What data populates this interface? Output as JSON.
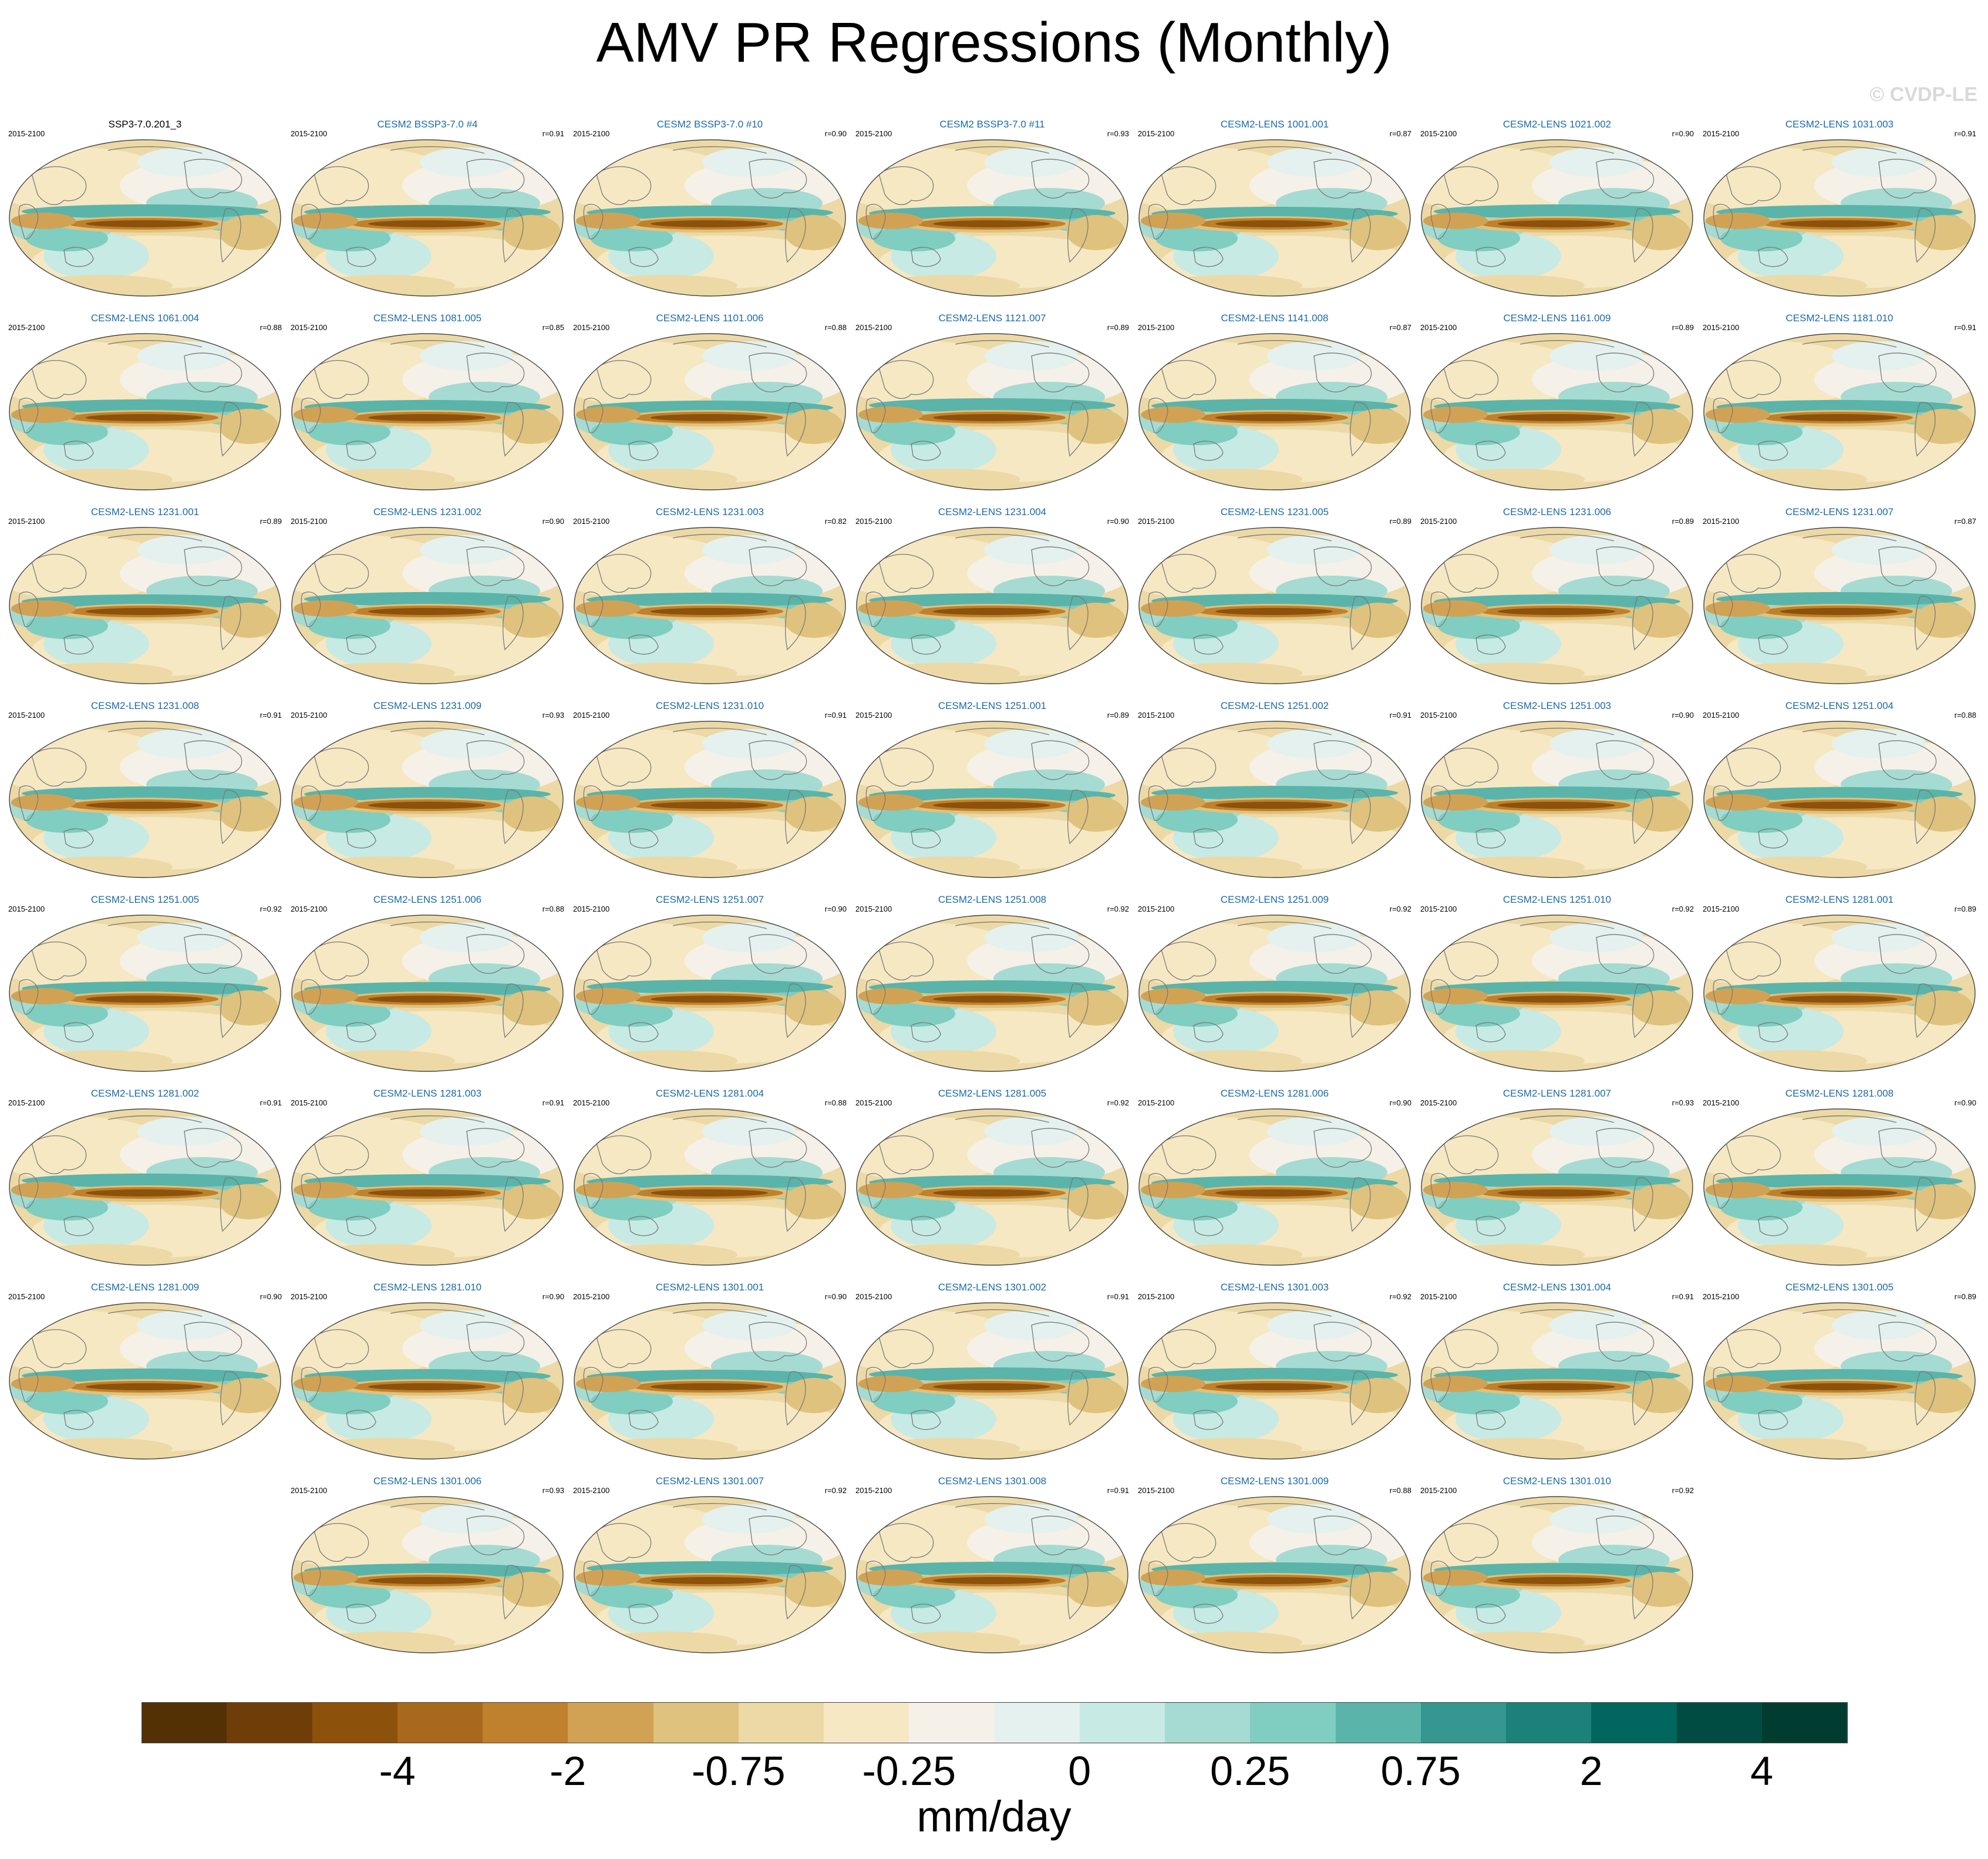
{
  "title": "AMV PR Regressions (Monthly)",
  "watermark": "© CVDP-LE",
  "chart_data": {
    "type": "map-grid",
    "title": "AMV PR Regressions (Monthly)",
    "colorbar": {
      "units": "mm/day",
      "colors": [
        "#543005",
        "#6f3e08",
        "#8c510a",
        "#a8691c",
        "#bf812d",
        "#d2a254",
        "#dfc27d",
        "#ecd9a6",
        "#f6e8c3",
        "#f5f1e8",
        "#e4f1ee",
        "#c7eae5",
        "#a5dbd2",
        "#80cdc1",
        "#5ab4a9",
        "#35978f",
        "#1c8179",
        "#01665e",
        "#014c42",
        "#003c30"
      ],
      "tick_labels": [
        "-4",
        "-2",
        "-0.75",
        "-0.25",
        "0",
        "0.25",
        "0.75",
        "2",
        "4"
      ],
      "tick_boundaries": [
        3,
        5,
        7,
        9,
        11,
        13,
        15,
        17,
        19
      ]
    },
    "panels": [
      {
        "title": "SSP3-7.0.201_3",
        "period": "2015-2100",
        "r": ""
      },
      {
        "title": "CESM2 BSSP3-7.0 #4",
        "period": "2015-2100",
        "r": "r=0.91"
      },
      {
        "title": "CESM2 BSSP3-7.0 #10",
        "period": "2015-2100",
        "r": "r=0.90"
      },
      {
        "title": "CESM2 BSSP3-7.0 #11",
        "period": "2015-2100",
        "r": "r=0.93"
      },
      {
        "title": "CESM2-LENS 1001.001",
        "period": "2015-2100",
        "r": "r=0.87"
      },
      {
        "title": "CESM2-LENS 1021.002",
        "period": "2015-2100",
        "r": "r=0.90"
      },
      {
        "title": "CESM2-LENS 1031.003",
        "period": "2015-2100",
        "r": "r=0.91"
      },
      {
        "title": "CESM2-LENS 1061.004",
        "period": "2015-2100",
        "r": "r=0.88"
      },
      {
        "title": "CESM2-LENS 1081.005",
        "period": "2015-2100",
        "r": "r=0.85"
      },
      {
        "title": "CESM2-LENS 1101.006",
        "period": "2015-2100",
        "r": "r=0.88"
      },
      {
        "title": "CESM2-LENS 1121.007",
        "period": "2015-2100",
        "r": "r=0.89"
      },
      {
        "title": "CESM2-LENS 1141.008",
        "period": "2015-2100",
        "r": "r=0.87"
      },
      {
        "title": "CESM2-LENS 1161.009",
        "period": "2015-2100",
        "r": "r=0.89"
      },
      {
        "title": "CESM2-LENS 1181.010",
        "period": "2015-2100",
        "r": "r=0.91"
      },
      {
        "title": "CESM2-LENS 1231.001",
        "period": "2015-2100",
        "r": "r=0.89"
      },
      {
        "title": "CESM2-LENS 1231.002",
        "period": "2015-2100",
        "r": "r=0.90"
      },
      {
        "title": "CESM2-LENS 1231.003",
        "period": "2015-2100",
        "r": "r=0.82"
      },
      {
        "title": "CESM2-LENS 1231.004",
        "period": "2015-2100",
        "r": "r=0.90"
      },
      {
        "title": "CESM2-LENS 1231.005",
        "period": "2015-2100",
        "r": "r=0.89"
      },
      {
        "title": "CESM2-LENS 1231.006",
        "period": "2015-2100",
        "r": "r=0.89"
      },
      {
        "title": "CESM2-LENS 1231.007",
        "period": "2015-2100",
        "r": "r=0.87"
      },
      {
        "title": "CESM2-LENS 1231.008",
        "period": "2015-2100",
        "r": "r=0.91"
      },
      {
        "title": "CESM2-LENS 1231.009",
        "period": "2015-2100",
        "r": "r=0.93"
      },
      {
        "title": "CESM2-LENS 1231.010",
        "period": "2015-2100",
        "r": "r=0.91"
      },
      {
        "title": "CESM2-LENS 1251.001",
        "period": "2015-2100",
        "r": "r=0.89"
      },
      {
        "title": "CESM2-LENS 1251.002",
        "period": "2015-2100",
        "r": "r=0.91"
      },
      {
        "title": "CESM2-LENS 1251.003",
        "period": "2015-2100",
        "r": "r=0.90"
      },
      {
        "title": "CESM2-LENS 1251.004",
        "period": "2015-2100",
        "r": "r=0.88"
      },
      {
        "title": "CESM2-LENS 1251.005",
        "period": "2015-2100",
        "r": "r=0.92"
      },
      {
        "title": "CESM2-LENS 1251.006",
        "period": "2015-2100",
        "r": "r=0.88"
      },
      {
        "title": "CESM2-LENS 1251.007",
        "period": "2015-2100",
        "r": "r=0.90"
      },
      {
        "title": "CESM2-LENS 1251.008",
        "period": "2015-2100",
        "r": "r=0.92"
      },
      {
        "title": "CESM2-LENS 1251.009",
        "period": "2015-2100",
        "r": "r=0.92"
      },
      {
        "title": "CESM2-LENS 1251.010",
        "period": "2015-2100",
        "r": "r=0.92"
      },
      {
        "title": "CESM2-LENS 1281.001",
        "period": "2015-2100",
        "r": "r=0.89"
      },
      {
        "title": "CESM2-LENS 1281.002",
        "period": "2015-2100",
        "r": "r=0.91"
      },
      {
        "title": "CESM2-LENS 1281.003",
        "period": "2015-2100",
        "r": "r=0.91"
      },
      {
        "title": "CESM2-LENS 1281.004",
        "period": "2015-2100",
        "r": "r=0.88"
      },
      {
        "title": "CESM2-LENS 1281.005",
        "period": "2015-2100",
        "r": "r=0.92"
      },
      {
        "title": "CESM2-LENS 1281.006",
        "period": "2015-2100",
        "r": "r=0.90"
      },
      {
        "title": "CESM2-LENS 1281.007",
        "period": "2015-2100",
        "r": "r=0.93"
      },
      {
        "title": "CESM2-LENS 1281.008",
        "period": "2015-2100",
        "r": "r=0.90"
      },
      {
        "title": "CESM2-LENS 1281.009",
        "period": "2015-2100",
        "r": "r=0.90"
      },
      {
        "title": "CESM2-LENS 1281.010",
        "period": "2015-2100",
        "r": "r=0.90"
      },
      {
        "title": "CESM2-LENS 1301.001",
        "period": "2015-2100",
        "r": "r=0.90"
      },
      {
        "title": "CESM2-LENS 1301.002",
        "period": "2015-2100",
        "r": "r=0.91"
      },
      {
        "title": "CESM2-LENS 1301.003",
        "period": "2015-2100",
        "r": "r=0.92"
      },
      {
        "title": "CESM2-LENS 1301.004",
        "period": "2015-2100",
        "r": "r=0.91"
      },
      {
        "title": "CESM2-LENS 1301.005",
        "period": "2015-2100",
        "r": "r=0.89"
      },
      {
        "title": "CESM2-LENS 1301.006",
        "period": "2015-2100",
        "r": "r=0.93"
      },
      {
        "title": "CESM2-LENS 1301.007",
        "period": "2015-2100",
        "r": "r=0.92"
      },
      {
        "title": "CESM2-LENS 1301.008",
        "period": "2015-2100",
        "r": "r=0.91"
      },
      {
        "title": "CESM2-LENS 1301.009",
        "period": "2015-2100",
        "r": "r=0.88"
      },
      {
        "title": "CESM2-LENS 1301.010",
        "period": "2015-2100",
        "r": "r=0.92"
      }
    ]
  }
}
